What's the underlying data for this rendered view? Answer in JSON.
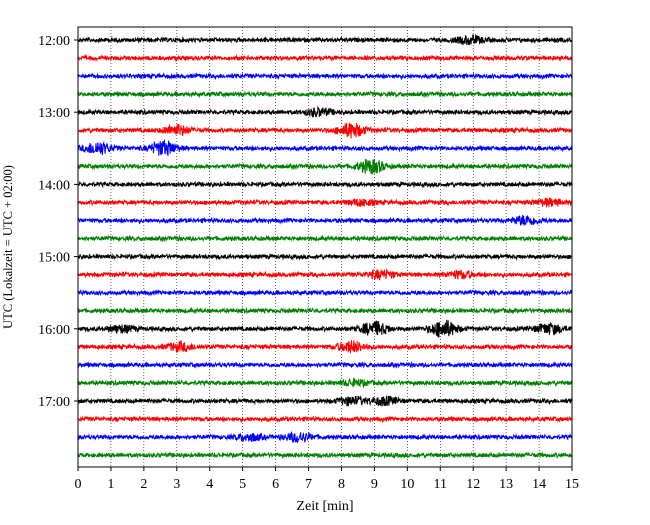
{
  "chart_data": {
    "type": "line",
    "chart_kind": "helicorder (seismogram drum plot)",
    "xlabel": "Zeit  [min]",
    "ylabel": "UTC (Lokalzeit = UTC + 02:00)",
    "xlim": [
      0,
      15
    ],
    "x_ticks": [
      "0",
      "1",
      "2",
      "3",
      "4",
      "5",
      "6",
      "7",
      "8",
      "9",
      "10",
      "11",
      "12",
      "13",
      "14",
      "15"
    ],
    "y_ticks": [
      "12:00",
      "13:00",
      "14:00",
      "15:00",
      "16:00",
      "17:00"
    ],
    "grid": {
      "vertical_dotted_per_minute": true
    },
    "trace_interval_minutes": 15,
    "color_cycle": [
      "#000000",
      "#ff0000",
      "#0000ff",
      "#008000"
    ],
    "traces": [
      {
        "start_utc": "12:00",
        "color": "#000000",
        "events": [
          {
            "t": 11.9,
            "amp": 1.4
          }
        ]
      },
      {
        "start_utc": "12:15",
        "color": "#ff0000",
        "events": []
      },
      {
        "start_utc": "12:30",
        "color": "#0000ff",
        "events": []
      },
      {
        "start_utc": "12:45",
        "color": "#008000",
        "events": []
      },
      {
        "start_utc": "13:00",
        "color": "#000000",
        "events": [
          {
            "t": 7.3,
            "amp": 1.3
          }
        ]
      },
      {
        "start_utc": "13:15",
        "color": "#ff0000",
        "events": [
          {
            "t": 3.0,
            "amp": 1.8
          },
          {
            "t": 8.3,
            "amp": 2.5
          }
        ]
      },
      {
        "start_utc": "13:30",
        "color": "#0000ff",
        "events": [
          {
            "t": 0.6,
            "amp": 2.2
          },
          {
            "t": 2.6,
            "amp": 2.6
          }
        ]
      },
      {
        "start_utc": "13:45",
        "color": "#008000",
        "events": [
          {
            "t": 8.9,
            "amp": 2.4
          }
        ]
      },
      {
        "start_utc": "14:00",
        "color": "#000000",
        "events": []
      },
      {
        "start_utc": "14:15",
        "color": "#ff0000",
        "events": [
          {
            "t": 8.6,
            "amp": 1.0
          },
          {
            "t": 14.3,
            "amp": 1.2
          }
        ]
      },
      {
        "start_utc": "14:30",
        "color": "#0000ff",
        "events": [
          {
            "t": 13.6,
            "amp": 1.6
          }
        ]
      },
      {
        "start_utc": "14:45",
        "color": "#008000",
        "events": []
      },
      {
        "start_utc": "15:00",
        "color": "#000000",
        "events": []
      },
      {
        "start_utc": "15:15",
        "color": "#ff0000",
        "events": [
          {
            "t": 9.2,
            "amp": 1.4
          },
          {
            "t": 11.6,
            "amp": 1.2
          }
        ]
      },
      {
        "start_utc": "15:30",
        "color": "#0000ff",
        "events": []
      },
      {
        "start_utc": "15:45",
        "color": "#008000",
        "events": []
      },
      {
        "start_utc": "16:00",
        "color": "#000000",
        "events": [
          {
            "t": 1.3,
            "amp": 1.2
          },
          {
            "t": 9.0,
            "amp": 2.4
          },
          {
            "t": 11.1,
            "amp": 3.0
          },
          {
            "t": 14.3,
            "amp": 1.8
          }
        ]
      },
      {
        "start_utc": "16:15",
        "color": "#ff0000",
        "events": [
          {
            "t": 3.1,
            "amp": 1.5
          },
          {
            "t": 8.3,
            "amp": 2.0
          }
        ]
      },
      {
        "start_utc": "16:30",
        "color": "#0000ff",
        "events": []
      },
      {
        "start_utc": "16:45",
        "color": "#008000",
        "events": [
          {
            "t": 8.4,
            "amp": 1.0
          }
        ]
      },
      {
        "start_utc": "17:00",
        "color": "#000000",
        "events": [
          {
            "t": 8.3,
            "amp": 1.4
          },
          {
            "t": 9.3,
            "amp": 1.4
          }
        ]
      },
      {
        "start_utc": "17:15",
        "color": "#ff0000",
        "events": []
      },
      {
        "start_utc": "17:30",
        "color": "#0000ff",
        "events": [
          {
            "t": 5.2,
            "amp": 1.2
          },
          {
            "t": 6.7,
            "amp": 1.6
          }
        ]
      },
      {
        "start_utc": "17:45",
        "color": "#008000",
        "events": []
      }
    ]
  }
}
